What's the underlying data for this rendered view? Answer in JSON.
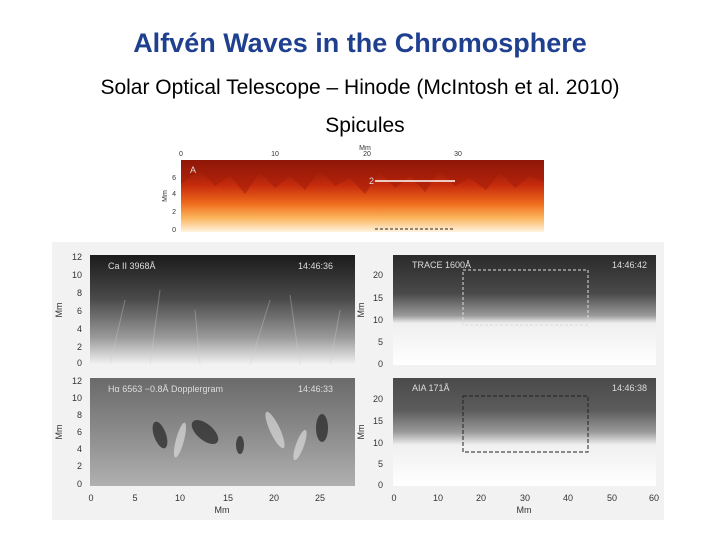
{
  "slide": {
    "title": "Alfvén Waves in the Chromosphere",
    "subtitle": "Solar Optical Telescope – Hinode (McIntosh et al. 2010)",
    "caption": "Spicules"
  },
  "top_panel": {
    "panel_letter": "A",
    "marker": "2",
    "unit_x": "Mm",
    "unit_y": "Mm",
    "x_ticks": [
      "0",
      "10",
      "20",
      "30"
    ],
    "y_ticks": [
      "6",
      "4",
      "2",
      "0"
    ]
  },
  "panel_ca": {
    "label": "Ca II 3968Å",
    "time": "14:46:36",
    "y_ticks": [
      "12",
      "10",
      "8",
      "6",
      "4",
      "2",
      "0"
    ],
    "y_unit": "Mm"
  },
  "panel_halpha": {
    "label": "Hα 6563 −0.8Å Dopplergram",
    "time": "14:46:33",
    "y_ticks": [
      "12",
      "10",
      "8",
      "6",
      "4",
      "2",
      "0"
    ],
    "x_ticks": [
      "0",
      "5",
      "10",
      "15",
      "20",
      "25"
    ],
    "y_unit": "Mm",
    "x_unit": "Mm"
  },
  "panel_trace1": {
    "label": "TRACE 1600Å",
    "time": "14:46:42",
    "y_ticks": [
      "20",
      "15",
      "10",
      "5",
      "0"
    ],
    "y_unit": "Mm"
  },
  "panel_trace2": {
    "label": "AIA 171Å",
    "time": "14:46:38",
    "y_ticks": [
      "20",
      "15",
      "10",
      "5",
      "0"
    ],
    "x_ticks": [
      "0",
      "10",
      "20",
      "30",
      "40",
      "50",
      "60"
    ],
    "y_unit": "Mm",
    "x_unit": "Mm"
  }
}
